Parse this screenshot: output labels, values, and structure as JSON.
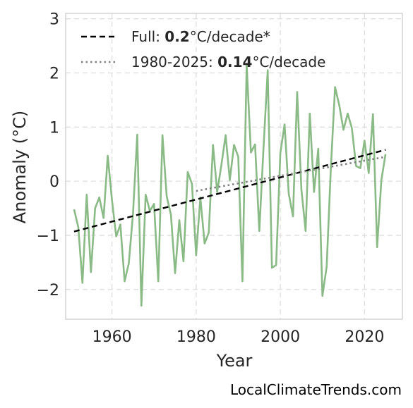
{
  "chart_data": {
    "type": "line",
    "xlabel": "Year",
    "ylabel": "Anomaly (°C)",
    "xlim": [
      1949,
      2029
    ],
    "ylim": [
      -2.55,
      3.1
    ],
    "xticks": [
      1960,
      1980,
      2000,
      2020
    ],
    "xtick_labels": [
      "1960",
      "1980",
      "2000",
      "2020"
    ],
    "yticks": [
      -2,
      -1,
      0,
      1,
      2,
      3
    ],
    "ytick_labels": [
      "−2",
      "−1",
      "0",
      "1",
      "2",
      "3"
    ],
    "grid": true,
    "legend_position": "top-left",
    "series": [
      {
        "name": "",
        "color": "#8aba85",
        "style": "solid",
        "x": [
          1951,
          1952,
          1953,
          1954,
          1955,
          1956,
          1957,
          1958,
          1959,
          1960,
          1961,
          1962,
          1963,
          1964,
          1965,
          1966,
          1967,
          1968,
          1969,
          1970,
          1971,
          1972,
          1973,
          1974,
          1975,
          1976,
          1977,
          1978,
          1979,
          1980,
          1981,
          1982,
          1983,
          1984,
          1985,
          1986,
          1987,
          1988,
          1989,
          1990,
          1991,
          1992,
          1993,
          1994,
          1995,
          1996,
          1997,
          1998,
          1999,
          2000,
          2001,
          2002,
          2003,
          2004,
          2005,
          2006,
          2007,
          2008,
          2009,
          2010,
          2011,
          2012,
          2013,
          2014,
          2015,
          2016,
          2017,
          2018,
          2019,
          2020,
          2021,
          2022,
          2023,
          2024,
          2025
        ],
        "y": [
          -0.52,
          -0.85,
          -1.88,
          -0.25,
          -1.68,
          -0.5,
          -0.3,
          -0.68,
          0.47,
          -0.35,
          -1.02,
          -0.8,
          -1.85,
          -1.52,
          -0.6,
          0.86,
          -2.3,
          -0.25,
          -0.55,
          -0.42,
          -1.85,
          0.85,
          -0.28,
          -0.62,
          -1.7,
          -0.72,
          -1.48,
          0.17,
          -0.05,
          -1.37,
          -0.3,
          -1.15,
          -0.95,
          0.67,
          -0.2,
          0.3,
          0.85,
          0.02,
          0.67,
          0.45,
          -1.85,
          2.15,
          0.53,
          0.68,
          -0.92,
          0.6,
          2.05,
          -1.6,
          -1.55,
          0.52,
          1.05,
          -0.23,
          -0.65,
          1.65,
          -0.15,
          -0.92,
          1.25,
          -0.2,
          0.6,
          -2.12,
          -1.58,
          0.23,
          1.74,
          1.4,
          0.95,
          1.25,
          0.98,
          0.28,
          0.24,
          0.75,
          0.15,
          1.24,
          -1.22,
          0.02,
          0.5
        ]
      },
      {
        "name": "Full trend",
        "color": "#000000",
        "style": "dashed",
        "x": [
          1951,
          2025
        ],
        "y": [
          -0.93,
          0.58
        ]
      },
      {
        "name": "1980-2025 trend",
        "color": "#808080",
        "style": "dotted",
        "x": [
          1980,
          2025
        ],
        "y": [
          -0.18,
          0.45
        ]
      }
    ],
    "legend": [
      {
        "prefix": "Full: ",
        "value": "0.2",
        "suffix": "°C/decade*",
        "color": "#000000",
        "style": "dashed"
      },
      {
        "prefix": "1980-2025: ",
        "value": "0.14",
        "suffix": "°C/decade",
        "color": "#808080",
        "style": "dotted"
      }
    ]
  },
  "credit": "LocalClimateTrends.com"
}
